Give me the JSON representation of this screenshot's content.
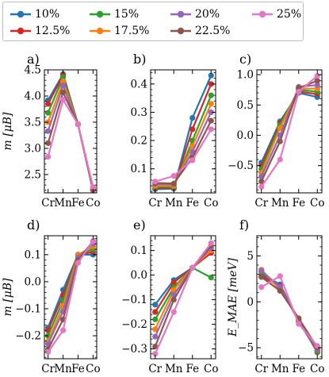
{
  "legend": {
    "items": [
      {
        "label": "10%",
        "color": "#1f77b4"
      },
      {
        "label": "12.5%",
        "color": "#d62728"
      },
      {
        "label": "15%",
        "color": "#2ca02c"
      },
      {
        "label": "17.5%",
        "color": "#ff7f0e"
      },
      {
        "label": "20%",
        "color": "#9467bd"
      },
      {
        "label": "22.5%",
        "color": "#8c564b"
      },
      {
        "label": "25%",
        "color": "#e377c2"
      }
    ]
  },
  "chart_data": [
    {
      "type": "line",
      "panel_label": "a)",
      "ylabel": "m [μB]",
      "x": [
        "Cr",
        "Mn",
        "Fe",
        "Co"
      ],
      "ylim": [
        2.15,
        4.5
      ],
      "yticks": [
        "2.5",
        "3.0",
        "3.5",
        "4.0",
        "4.5"
      ],
      "ytick_values": [
        2.5,
        3.0,
        3.5,
        4.0,
        4.5
      ],
      "series": [
        {
          "label": "10%",
          "values": [
            3.92,
            4.42,
            3.46,
            2.2
          ]
        },
        {
          "label": "12.5%",
          "values": [
            3.85,
            4.4,
            3.46,
            2.2
          ]
        },
        {
          "label": "15%",
          "values": [
            3.68,
            4.36,
            3.46,
            2.2
          ]
        },
        {
          "label": "17.5%",
          "values": [
            3.5,
            4.28,
            3.46,
            2.2
          ]
        },
        {
          "label": "20%",
          "values": [
            3.33,
            4.2,
            3.46,
            2.21
          ]
        },
        {
          "label": "22.5%",
          "values": [
            3.1,
            4.07,
            3.46,
            2.22
          ]
        },
        {
          "label": "25%",
          "values": [
            2.84,
            3.93,
            3.46,
            2.26
          ]
        }
      ]
    },
    {
      "type": "line",
      "panel_label": "b)",
      "ylabel": "",
      "x": [
        "Cr",
        "Mn",
        "Fe",
        "Co"
      ],
      "ylim": [
        0.015,
        0.45
      ],
      "yticks": [
        "0.1",
        "0.2",
        "0.3",
        "0.4"
      ],
      "ytick_values": [
        0.1,
        0.2,
        0.3,
        0.4
      ],
      "series": [
        {
          "label": "10%",
          "values": [
            0.028,
            0.03,
            0.28,
            0.43
          ]
        },
        {
          "label": "12.5%",
          "values": [
            0.032,
            0.033,
            0.24,
            0.4
          ]
        },
        {
          "label": "15%",
          "values": [
            0.036,
            0.036,
            0.2,
            0.36
          ]
        },
        {
          "label": "17.5%",
          "values": [
            0.04,
            0.04,
            0.18,
            0.33
          ]
        },
        {
          "label": "20%",
          "values": [
            0.046,
            0.045,
            0.16,
            0.3
          ]
        },
        {
          "label": "22.5%",
          "values": [
            0.05,
            0.048,
            0.14,
            0.27
          ]
        },
        {
          "label": "25%",
          "values": [
            0.055,
            0.075,
            0.13,
            0.24
          ]
        }
      ]
    },
    {
      "type": "line",
      "panel_label": "c)",
      "ylabel": "",
      "x": [
        "Cr",
        "Mn",
        "Fe",
        "Co"
      ],
      "ylim": [
        -0.95,
        1.08
      ],
      "yticks": [
        "−0.5",
        "0.0",
        "0.5",
        "1.0"
      ],
      "ytick_values": [
        -0.5,
        0.0,
        0.5,
        1.0
      ],
      "series": [
        {
          "label": "10%",
          "values": [
            -0.45,
            0.23,
            0.7,
            0.63
          ]
        },
        {
          "label": "12.5%",
          "values": [
            -0.5,
            0.2,
            0.72,
            0.68
          ]
        },
        {
          "label": "15%",
          "values": [
            -0.56,
            0.17,
            0.75,
            0.72
          ]
        },
        {
          "label": "17.5%",
          "values": [
            -0.62,
            0.12,
            0.77,
            0.77
          ]
        },
        {
          "label": "20%",
          "values": [
            -0.68,
            0.0,
            0.8,
            0.83
          ]
        },
        {
          "label": "22.5%",
          "values": [
            -0.76,
            -0.1,
            0.78,
            0.9
          ]
        },
        {
          "label": "25%",
          "values": [
            -0.85,
            -0.4,
            0.72,
            0.98
          ]
        }
      ]
    },
    {
      "type": "line",
      "panel_label": "d)",
      "ylabel": "m [μB]",
      "x": [
        "Cr",
        "Mn",
        "Fe",
        "Co"
      ],
      "ylim": [
        -0.285,
        0.17
      ],
      "yticks": [
        "−0.2",
        "−0.1",
        "0.0",
        "0.1"
      ],
      "ytick_values": [
        -0.2,
        -0.1,
        0.0,
        0.1
      ],
      "series": [
        {
          "label": "10%",
          "values": [
            -0.17,
            -0.03,
            0.1,
            0.1
          ]
        },
        {
          "label": "12.5%",
          "values": [
            -0.18,
            -0.05,
            0.1,
            0.11
          ]
        },
        {
          "label": "15%",
          "values": [
            -0.2,
            -0.07,
            0.1,
            0.12
          ]
        },
        {
          "label": "17.5%",
          "values": [
            -0.22,
            -0.09,
            0.1,
            0.13
          ]
        },
        {
          "label": "20%",
          "values": [
            -0.23,
            -0.11,
            0.09,
            0.14
          ]
        },
        {
          "label": "22.5%",
          "values": [
            -0.25,
            -0.14,
            0.08,
            0.15
          ]
        },
        {
          "label": "25%",
          "values": [
            -0.26,
            -0.18,
            0.07,
            0.15
          ]
        }
      ]
    },
    {
      "type": "line",
      "panel_label": "e)",
      "ylabel": "",
      "x": [
        "Cr",
        "Mn",
        "Fe",
        "Co"
      ],
      "ylim": [
        -0.34,
        0.16
      ],
      "yticks": [
        "−0.3",
        "−0.2",
        "−0.1",
        "0.0",
        "0.1"
      ],
      "ytick_values": [
        -0.3,
        -0.2,
        -0.1,
        0.0,
        0.1
      ],
      "series": [
        {
          "label": "10%",
          "values": [
            -0.12,
            -0.02,
            0.03,
            0.1
          ]
        },
        {
          "label": "12.5%",
          "values": [
            -0.15,
            -0.03,
            0.03,
            0.09
          ]
        },
        {
          "label": "15%",
          "values": [
            -0.18,
            -0.05,
            0.03,
            -0.01
          ]
        },
        {
          "label": "17.5%",
          "values": [
            -0.22,
            -0.06,
            0.03,
            0.1
          ]
        },
        {
          "label": "20%",
          "values": [
            -0.25,
            -0.08,
            0.03,
            0.11
          ]
        },
        {
          "label": "22.5%",
          "values": [
            -0.29,
            -0.1,
            0.03,
            0.12
          ]
        },
        {
          "label": "25%",
          "values": [
            -0.32,
            -0.15,
            0.03,
            0.13
          ]
        }
      ]
    },
    {
      "type": "line",
      "panel_label": "f)",
      "ylabel": "E_MAE [meV]",
      "x": [
        "Cr",
        "Mn",
        "Fe",
        "Co"
      ],
      "ylim": [
        -6.2,
        7.2
      ],
      "yticks": [
        "−5",
        "0",
        "5"
      ],
      "ytick_values": [
        -5,
        0,
        5
      ],
      "series": [
        {
          "label": "10%",
          "values": [
            3.0,
            1.9,
            -2.2,
            -5.3
          ]
        },
        {
          "label": "12.5%",
          "values": [
            2.8,
            1.7,
            -2.0,
            -5.5
          ]
        },
        {
          "label": "15%",
          "values": [
            3.3,
            1.5,
            -1.9,
            -5.4
          ]
        },
        {
          "label": "17.5%",
          "values": [
            3.5,
            1.3,
            -1.8,
            -5.0
          ]
        },
        {
          "label": "20%",
          "values": [
            3.4,
            1.6,
            -2.1,
            -5.2
          ]
        },
        {
          "label": "22.5%",
          "values": [
            2.7,
            1.2,
            -1.8,
            -5.0
          ]
        },
        {
          "label": "25%",
          "values": [
            1.6,
            2.8,
            -2.4,
            -4.8
          ]
        }
      ]
    }
  ]
}
